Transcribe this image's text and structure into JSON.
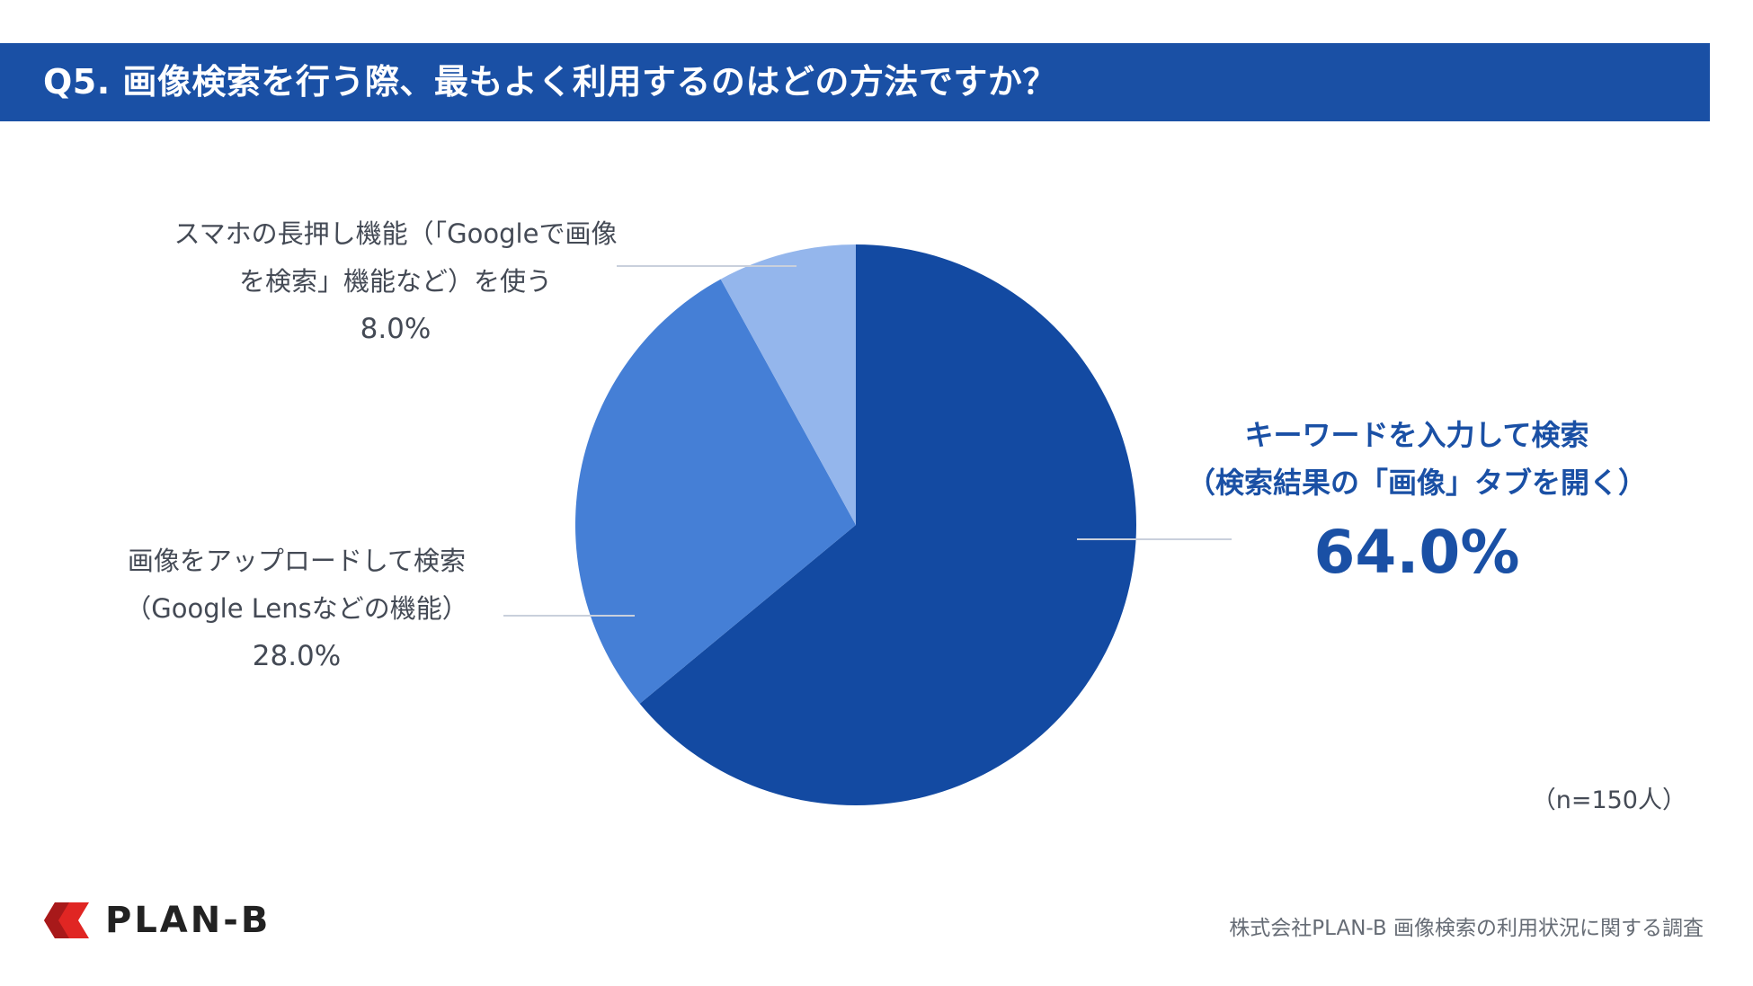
{
  "header": {
    "title": "Q5. 画像検索を行う際、最もよく利用するのはどの方法ですか？"
  },
  "colors": {
    "header_bg": "#1a50a5",
    "slice_main": "#134aa2",
    "slice_second": "#457fd6",
    "slice_third": "#94b6ec",
    "leader_line": "#c9d0dc",
    "label_text": "#444a55",
    "highlight_text": "#1a50a5",
    "logo_red": "#e02623"
  },
  "chart_data": {
    "type": "pie",
    "title": "Q5. 画像検索を行う際、最もよく利用するのはどの方法ですか？",
    "slices": [
      {
        "label_lines": [
          "キーワードを入力して検索",
          "（検索結果の「画像」タブを開く）"
        ],
        "value": 64.0,
        "value_label": "64.0%"
      },
      {
        "label_lines": [
          "画像をアップロードして検索",
          "（Google Lensなどの機能）"
        ],
        "value": 28.0,
        "value_label": "28.0%"
      },
      {
        "label_lines": [
          "スマホの長押し機能（「Googleで画像",
          "を検索」機能など）を使う"
        ],
        "value": 8.0,
        "value_label": "8.0%"
      }
    ],
    "start": "12 o'clock",
    "direction": "clockwise"
  },
  "notes": {
    "sample_size": "（n=150人）"
  },
  "footer": {
    "source": "株式会社PLAN-B  画像検索の利用状況に関する調査",
    "logo_text": "PLAN-B"
  }
}
